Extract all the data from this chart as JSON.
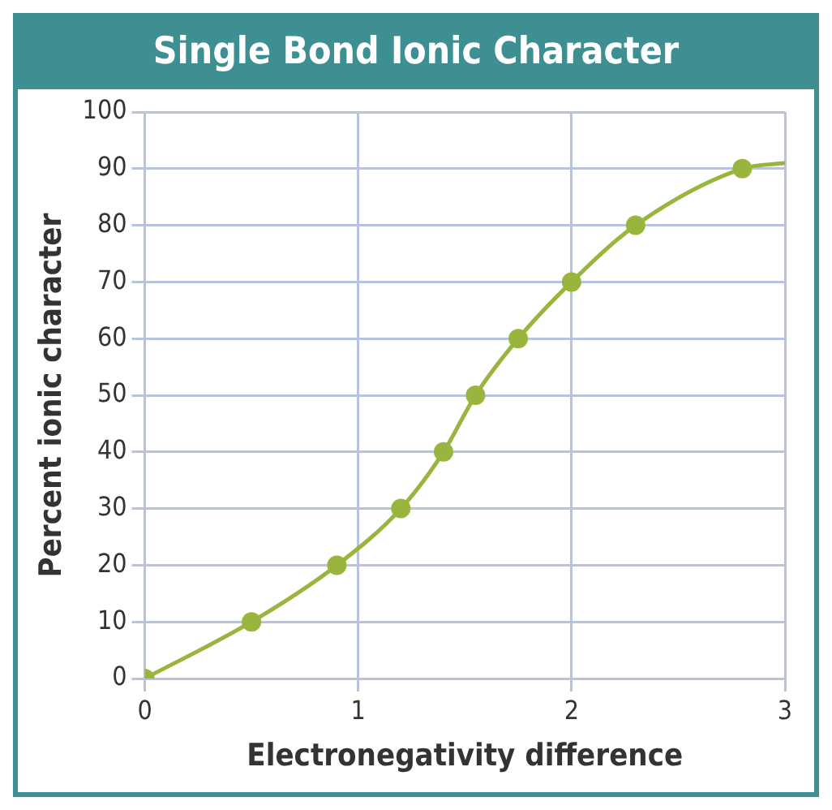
{
  "chart_data": {
    "type": "line",
    "title": "Single Bond Ionic Character",
    "xlabel": "Electronegativity difference",
    "ylabel": "Percent ionic character",
    "series": [
      {
        "color": "#9ab53e",
        "marker": "none",
        "x": [
          0,
          0.5,
          0.9,
          1.2,
          1.4,
          1.55,
          1.75,
          2,
          2.3,
          2.8,
          3
        ],
        "values": [
          0,
          10,
          20,
          30,
          40,
          50,
          60,
          70,
          80,
          90,
          91
        ]
      },
      {
        "type": "scatter",
        "color": "#9ab53e",
        "marker": "circle",
        "x": [
          0,
          0.5,
          0.9,
          1.2,
          1.4,
          1.55,
          1.75,
          2,
          2.3,
          2.8
        ],
        "values": [
          0,
          10,
          20,
          30,
          40,
          50,
          60,
          70,
          80,
          90
        ]
      }
    ],
    "xlim": [
      0,
      3
    ],
    "xticks": [
      0,
      1,
      2,
      3
    ],
    "ylim": [
      0,
      100
    ],
    "yticks": [
      0,
      10,
      20,
      30,
      40,
      50,
      60,
      70,
      80,
      90,
      100
    ],
    "grid": true,
    "legend": false
  }
}
